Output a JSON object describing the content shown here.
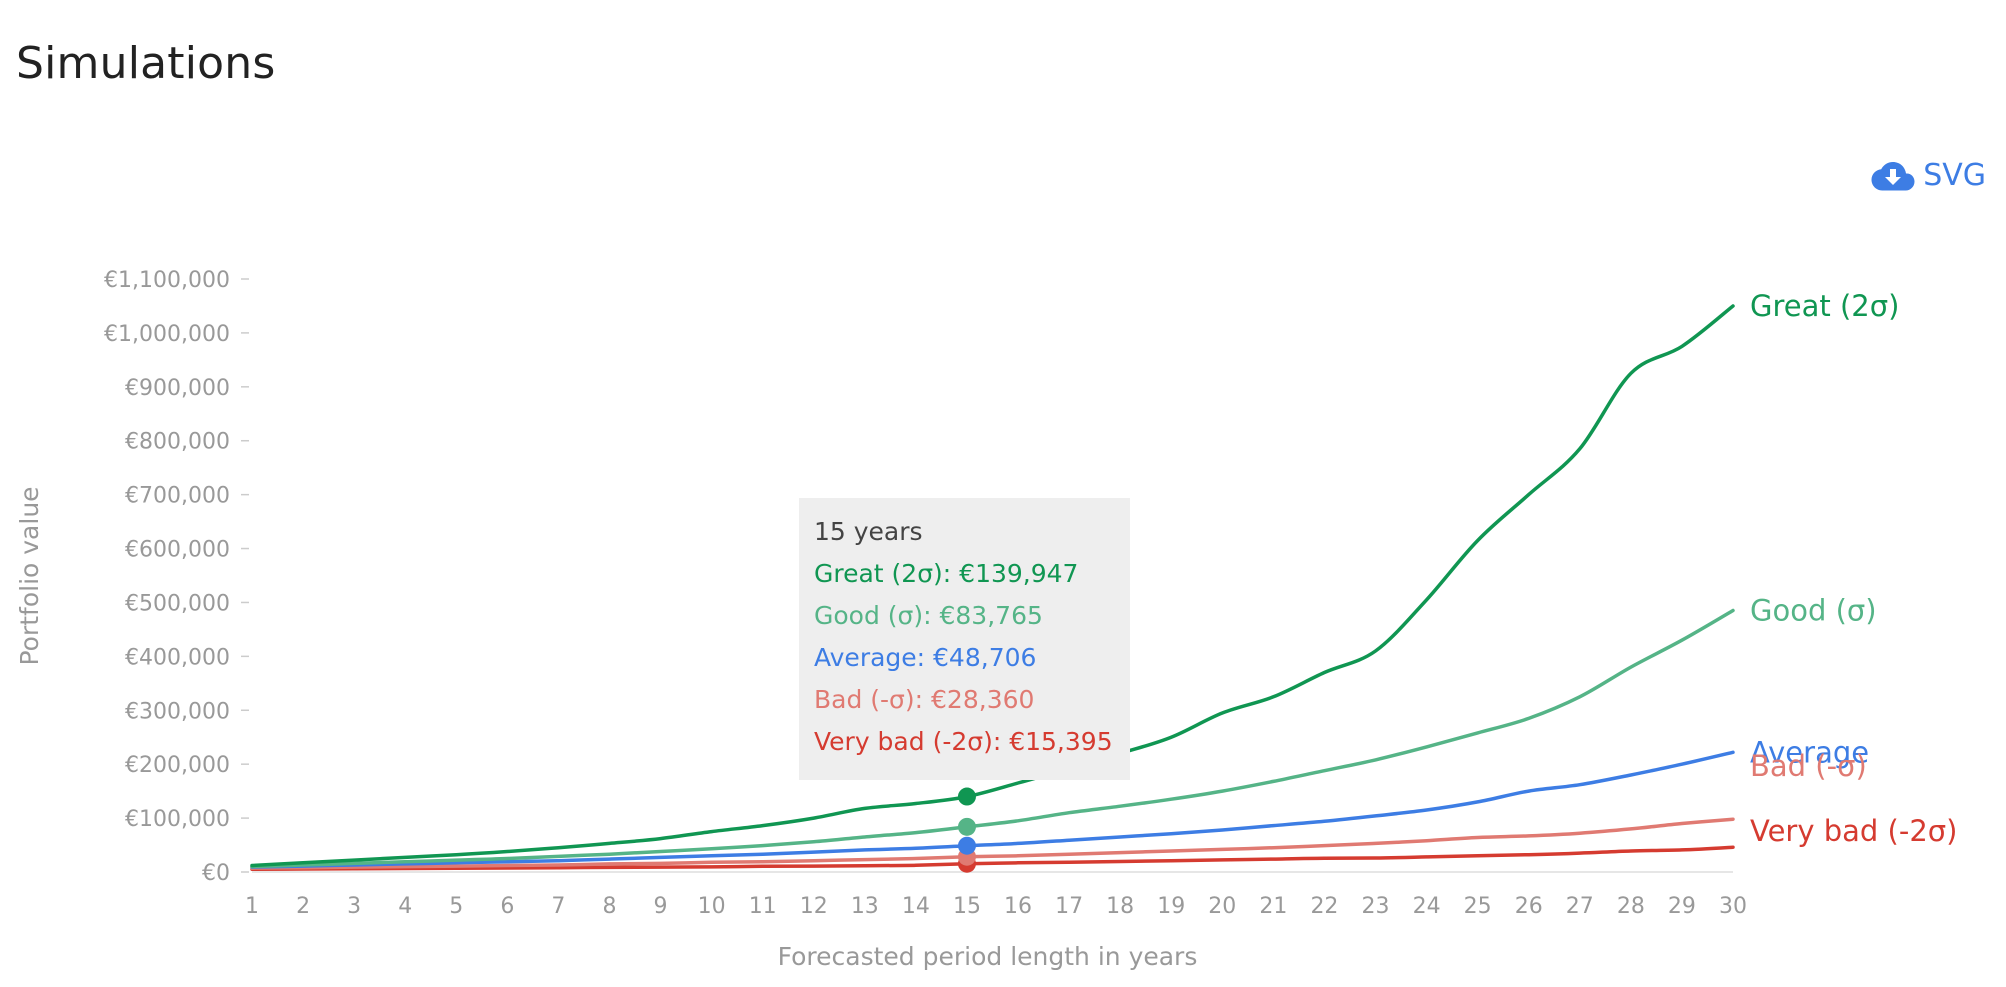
{
  "page": {
    "title": "Simulations",
    "download_label": "SVG",
    "download_icon": "cloud-download-icon"
  },
  "colors": {
    "great": "#109652",
    "good": "#55b487",
    "average": "#3d7de4",
    "bad": "#e07a72",
    "very_bad": "#d53b30",
    "axis_text": "#999999",
    "accent": "#3d7de4"
  },
  "tooltip": {
    "header": "15 years",
    "rows": [
      {
        "key": "great",
        "text": "Great (2σ): €139,947"
      },
      {
        "key": "good",
        "text": "Good (σ): €83,765"
      },
      {
        "key": "average",
        "text": "Average: €48,706"
      },
      {
        "key": "bad",
        "text": "Bad (-σ): €28,360"
      },
      {
        "key": "very_bad",
        "text": "Very bad (-2σ): €15,395"
      }
    ]
  },
  "chart_data": {
    "type": "line",
    "xlabel": "Forecasted period length in years",
    "ylabel": "Portfolio value",
    "x": [
      1,
      2,
      3,
      4,
      5,
      6,
      7,
      8,
      9,
      10,
      11,
      12,
      13,
      14,
      15,
      16,
      17,
      18,
      19,
      20,
      21,
      22,
      23,
      24,
      25,
      26,
      27,
      28,
      29,
      30
    ],
    "ylim": [
      0,
      1100000
    ],
    "yticks": [
      0,
      100000,
      200000,
      300000,
      400000,
      500000,
      600000,
      700000,
      800000,
      900000,
      1000000,
      1100000
    ],
    "ytick_labels": [
      "€0",
      "€100,000",
      "€200,000",
      "€300,000",
      "€400,000",
      "€500,000",
      "€600,000",
      "€700,000",
      "€800,000",
      "€900,000",
      "€1,000,000",
      "€1,100,000"
    ],
    "legend_placement": "line-end labels on right",
    "grid": false,
    "highlight_x": 15,
    "series": [
      {
        "name": "Great (2σ)",
        "key": "great",
        "values": [
          12000,
          17000,
          22000,
          27000,
          32000,
          38000,
          45000,
          53000,
          62000,
          75000,
          86000,
          100000,
          118000,
          127000,
          139947,
          165000,
          192000,
          220000,
          250000,
          295000,
          325000,
          370000,
          410000,
          505000,
          615000,
          700000,
          785000,
          925000,
          975000,
          1050000
        ]
      },
      {
        "name": "Good (σ)",
        "key": "good",
        "values": [
          10000,
          13000,
          16000,
          19000,
          22000,
          25000,
          29000,
          33000,
          38000,
          43000,
          49000,
          56000,
          65000,
          73000,
          83765,
          95000,
          110000,
          122000,
          135000,
          150000,
          168000,
          188000,
          208000,
          232000,
          258000,
          285000,
          325000,
          380000,
          430000,
          485000
        ]
      },
      {
        "name": "Average",
        "key": "average",
        "values": [
          9000,
          11000,
          13000,
          15000,
          17000,
          19000,
          21000,
          24000,
          27000,
          30000,
          33000,
          37000,
          41000,
          44000,
          48706,
          53000,
          59000,
          65000,
          71000,
          78000,
          86000,
          94000,
          104000,
          115000,
          130000,
          150000,
          162000,
          180000,
          200000,
          222000
        ]
      },
      {
        "name": "Bad (-σ)",
        "key": "bad",
        "values": [
          7000,
          8000,
          9000,
          10000,
          11000,
          12000,
          13000,
          15000,
          16000,
          18000,
          19000,
          21000,
          23000,
          25000,
          28360,
          30000,
          33000,
          36000,
          39000,
          42000,
          45000,
          49000,
          53000,
          58000,
          64000,
          67000,
          72000,
          80000,
          90000,
          98000
        ]
      },
      {
        "name": "Very bad (-2σ)",
        "key": "very_bad",
        "values": [
          5000,
          5500,
          6000,
          6500,
          7000,
          7500,
          8000,
          8500,
          9000,
          9500,
          10500,
          11000,
          11500,
          12500,
          15395,
          17000,
          18000,
          19500,
          21000,
          22500,
          24000,
          25500,
          26000,
          28000,
          30000,
          32000,
          35000,
          39000,
          41000,
          46000
        ]
      }
    ]
  }
}
